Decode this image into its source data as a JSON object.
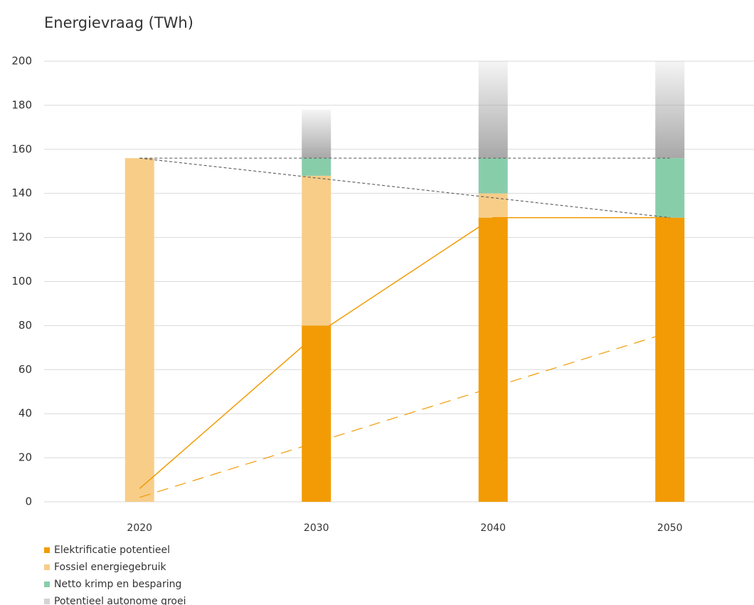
{
  "chart_data": {
    "type": "bar",
    "stacked": true,
    "title": "Energievraag (TWh)",
    "categories": [
      "2020",
      "2030",
      "2040",
      "2050"
    ],
    "series": [
      {
        "name": "Elektrificatie potentieel",
        "color": "#f29b05",
        "values": [
          null,
          80,
          129,
          129
        ]
      },
      {
        "name": "Fossiel energiegebruik",
        "color": "#f7cd88",
        "values": [
          156,
          68,
          11,
          null
        ]
      },
      {
        "name": "Netto krimp en besparing",
        "color": "#88cdaa",
        "values": [
          null,
          8,
          16,
          27
        ]
      },
      {
        "name": "Potentieel autonome groei",
        "color": "#a8a8a8",
        "values": [
          null,
          22,
          44,
          44
        ]
      }
    ],
    "lines": [
      {
        "color": "#f29b05",
        "dash": "none",
        "values": [
          6,
          76,
          129,
          129
        ]
      },
      {
        "color": "#f29b05",
        "dash": "16 10",
        "values": [
          2,
          27,
          52,
          77
        ]
      },
      {
        "color": "#666666",
        "dash": "4 3",
        "values": [
          156,
          156,
          156,
          156
        ]
      },
      {
        "color": "#666666",
        "dash": "4 3",
        "values": [
          156,
          147,
          138,
          129
        ]
      }
    ],
    "ylim": [
      0,
      200
    ],
    "yticks": [
      0,
      20,
      40,
      60,
      80,
      100,
      120,
      140,
      160,
      180,
      200
    ],
    "grid": true
  }
}
